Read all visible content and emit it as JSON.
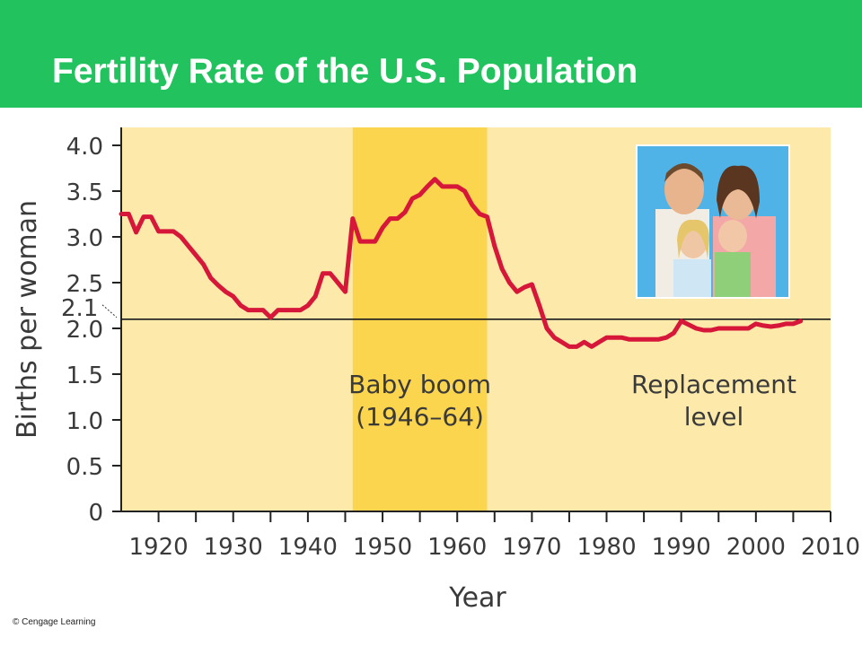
{
  "slide": {
    "title": "Fertility Rate of the U.S. Population",
    "credit": "© Cengage Learning"
  },
  "colors": {
    "header": "#22c35e",
    "plot_background": "#fdeaab",
    "baby_boom_band": "#fcd54f",
    "series_line": "#d6173a",
    "replacement_line": "#1a1a1a"
  },
  "photo": {
    "icon": "family-photo"
  },
  "chart_data": {
    "type": "line",
    "title": "",
    "xlabel": "Year",
    "ylabel": "Births per woman",
    "xlim": [
      1915,
      2010
    ],
    "ylim": [
      0,
      4.0
    ],
    "x_ticks": [
      1920,
      1930,
      1940,
      1950,
      1960,
      1970,
      1980,
      1990,
      2000,
      2010
    ],
    "y_ticks": [
      {
        "value": 0,
        "label": "0"
      },
      {
        "value": 0.5,
        "label": "0.5"
      },
      {
        "value": 1.0,
        "label": "1.0"
      },
      {
        "value": 1.5,
        "label": "1.5"
      },
      {
        "value": 2.0,
        "label": "2.0"
      },
      {
        "value": 2.5,
        "label": "2.5"
      },
      {
        "value": 3.0,
        "label": "3.0"
      },
      {
        "value": 3.5,
        "label": "3.5"
      },
      {
        "value": 4.0,
        "label": "4.0"
      }
    ],
    "grid": false,
    "replacement_level": {
      "value": 2.1,
      "label": "2.1",
      "text": "Replacement level"
    },
    "baby_boom": {
      "start": 1946,
      "end": 1964,
      "text": "Baby boom (1946–64)"
    },
    "series": [
      {
        "x": [
          1915,
          1916,
          1917,
          1918,
          1919,
          1920,
          1921,
          1922,
          1923,
          1924,
          1925,
          1926,
          1927,
          1928,
          1929,
          1930,
          1931,
          1932,
          1933,
          1934,
          1935,
          1936,
          1937,
          1938,
          1939,
          1940,
          1941,
          1942,
          1943,
          1944,
          1945,
          1946,
          1947,
          1948,
          1949,
          1950,
          1951,
          1952,
          1953,
          1954,
          1955,
          1956,
          1957,
          1958,
          1959,
          1960,
          1961,
          1962,
          1963,
          1964,
          1965,
          1966,
          1967,
          1968,
          1969,
          1970,
          1971,
          1972,
          1973,
          1974,
          1975,
          1976,
          1977,
          1978,
          1979,
          1980,
          1981,
          1982,
          1983,
          1984,
          1985,
          1986,
          1987,
          1988,
          1989,
          1990,
          1991,
          1992,
          1993,
          1994,
          1995,
          1996,
          1997,
          1998,
          1999,
          2000,
          2001,
          2002,
          2003,
          2004,
          2005,
          2006
        ],
        "values": [
          3.25,
          3.25,
          3.05,
          3.22,
          3.22,
          3.06,
          3.06,
          3.06,
          3.0,
          2.9,
          2.8,
          2.7,
          2.55,
          2.47,
          2.4,
          2.35,
          2.25,
          2.2,
          2.2,
          2.2,
          2.12,
          2.2,
          2.2,
          2.2,
          2.2,
          2.25,
          2.35,
          2.6,
          2.6,
          2.5,
          2.4,
          3.2,
          2.95,
          2.95,
          2.95,
          3.1,
          3.2,
          3.2,
          3.27,
          3.42,
          3.46,
          3.55,
          3.63,
          3.55,
          3.55,
          3.55,
          3.5,
          3.35,
          3.25,
          3.22,
          2.9,
          2.65,
          2.5,
          2.4,
          2.45,
          2.48,
          2.25,
          2.0,
          1.9,
          1.85,
          1.8,
          1.8,
          1.85,
          1.8,
          1.85,
          1.9,
          1.9,
          1.9,
          1.88,
          1.88,
          1.88,
          1.88,
          1.88,
          1.9,
          1.95,
          2.08,
          2.04,
          2.0,
          1.98,
          1.98,
          2.0,
          2.0,
          2.0,
          2.0,
          2.0,
          2.05,
          2.03,
          2.02,
          2.03,
          2.05,
          2.05,
          2.08
        ]
      }
    ]
  }
}
